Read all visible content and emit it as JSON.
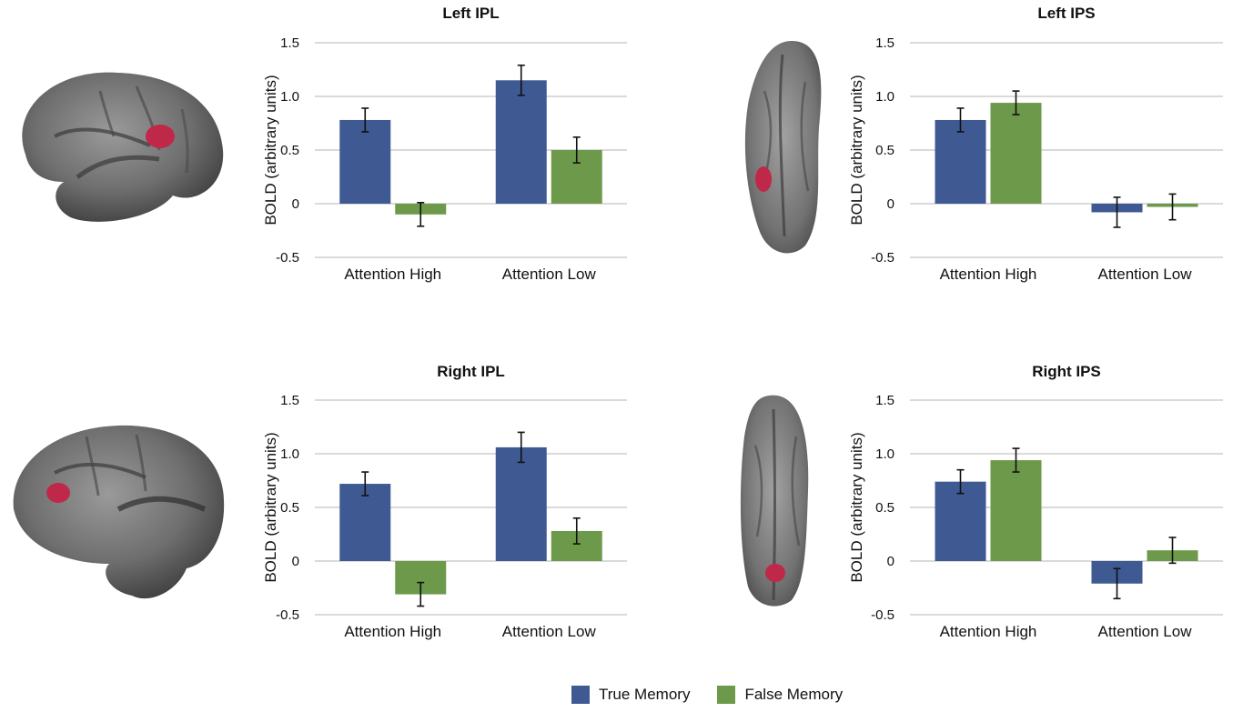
{
  "colors": {
    "true_memory": "#3f5a93",
    "false_memory": "#6d9a4a",
    "highlight": "#c0284a"
  },
  "legend": {
    "true_label": "True Memory",
    "false_label": "False Memory"
  },
  "chart_data": [
    {
      "type": "bar",
      "title": "Left IPL",
      "ylabel": "BOLD (arbitrary units)",
      "ylim": [
        -0.5,
        1.5
      ],
      "yticks": [
        "1.5",
        "1.0",
        "0.5",
        "0",
        "-0.5"
      ],
      "categories": [
        "Attention High",
        "Attention Low"
      ],
      "series": [
        {
          "name": "True Memory",
          "values": [
            0.78,
            1.15
          ],
          "errors": [
            0.11,
            0.14
          ]
        },
        {
          "name": "False Memory",
          "values": [
            -0.1,
            0.5
          ],
          "errors": [
            0.11,
            0.12
          ]
        }
      ]
    },
    {
      "type": "bar",
      "title": "Left IPS",
      "ylabel": "BOLD (arbitrary units)",
      "ylim": [
        -0.5,
        1.5
      ],
      "yticks": [
        "1.5",
        "1.0",
        "0.5",
        "0",
        "-0.5"
      ],
      "categories": [
        "Attention High",
        "Attention Low"
      ],
      "series": [
        {
          "name": "True Memory",
          "values": [
            0.78,
            -0.08
          ],
          "errors": [
            0.11,
            0.14
          ]
        },
        {
          "name": "False Memory",
          "values": [
            0.94,
            -0.03
          ],
          "errors": [
            0.11,
            0.12
          ]
        }
      ]
    },
    {
      "type": "bar",
      "title": "Right IPL",
      "ylabel": "BOLD (arbitrary units)",
      "ylim": [
        -0.5,
        1.5
      ],
      "yticks": [
        "1.5",
        "1.0",
        "0.5",
        "0",
        "-0.5"
      ],
      "categories": [
        "Attention High",
        "Attention Low"
      ],
      "series": [
        {
          "name": "True Memory",
          "values": [
            0.72,
            1.06
          ],
          "errors": [
            0.11,
            0.14
          ]
        },
        {
          "name": "False Memory",
          "values": [
            -0.31,
            0.28
          ],
          "errors": [
            0.11,
            0.12
          ]
        }
      ]
    },
    {
      "type": "bar",
      "title": "Right IPS",
      "ylabel": "BOLD (arbitrary units)",
      "ylim": [
        -0.5,
        1.5
      ],
      "yticks": [
        "1.5",
        "1.0",
        "0.5",
        "0",
        "-0.5"
      ],
      "categories": [
        "Attention High",
        "Attention Low"
      ],
      "series": [
        {
          "name": "True Memory",
          "values": [
            0.74,
            -0.21
          ],
          "errors": [
            0.11,
            0.14
          ]
        },
        {
          "name": "False Memory",
          "values": [
            0.94,
            0.1
          ],
          "errors": [
            0.11,
            0.12
          ]
        }
      ]
    }
  ]
}
